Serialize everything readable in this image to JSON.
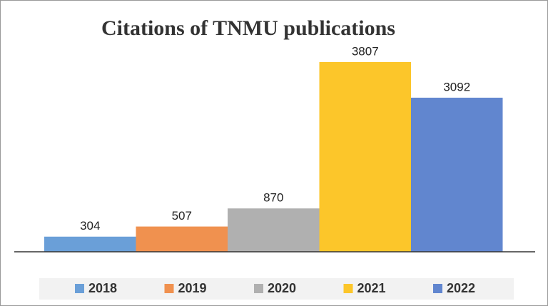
{
  "chart_data": {
    "type": "bar",
    "title": "Citations of TNMU publications",
    "categories": [
      "2018",
      "2019",
      "2020",
      "2021",
      "2022"
    ],
    "values": [
      304,
      507,
      870,
      3807,
      3092
    ],
    "colors": [
      "#6a9fd8",
      "#f0914f",
      "#b0b0b0",
      "#fcc62a",
      "#6186cf"
    ],
    "legend": "bottom"
  }
}
